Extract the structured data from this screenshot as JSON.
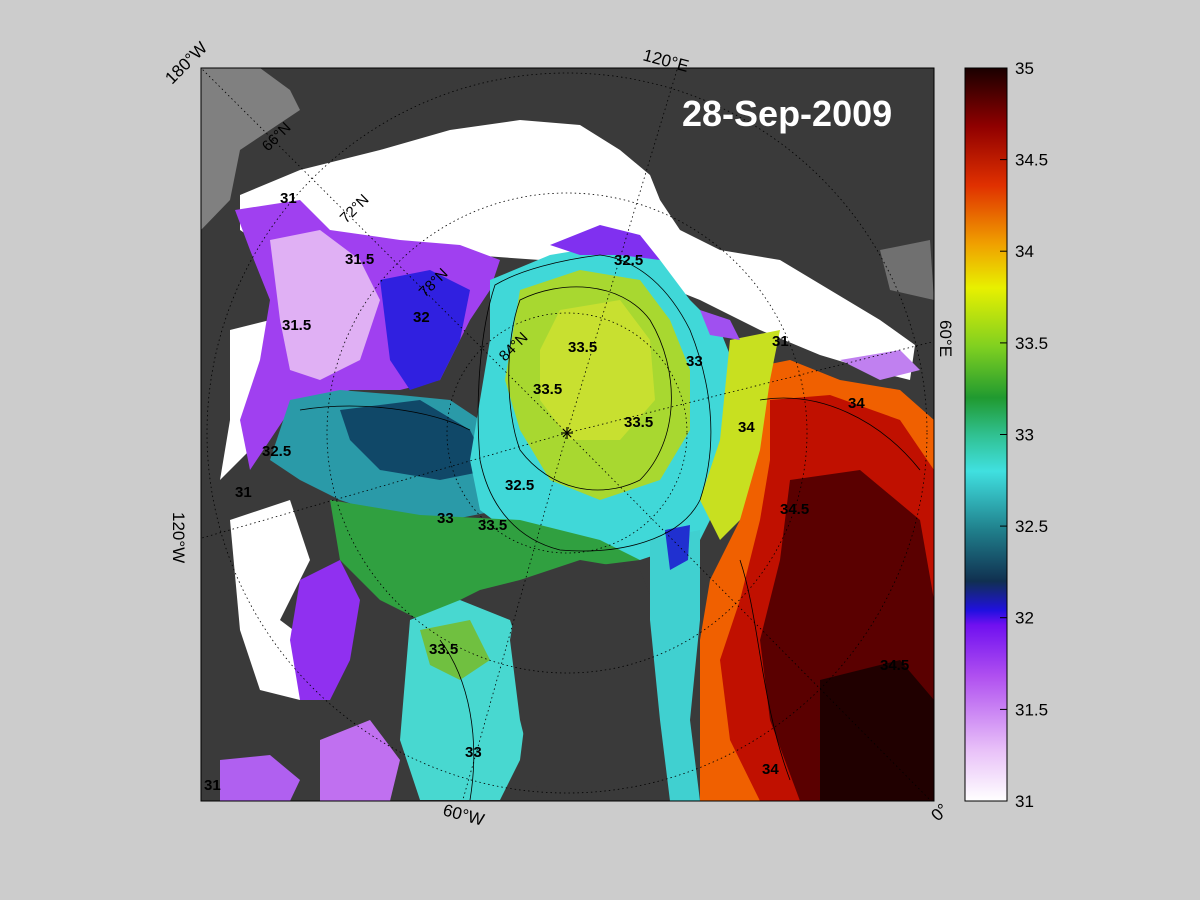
{
  "map": {
    "date": "28-Sep-2009",
    "edge_labels": [
      "180°W",
      "120°E",
      "60°E",
      "0°",
      "60°W",
      "120°W"
    ],
    "graticule_labels": [
      "66°N",
      "72°N",
      "78°N",
      "84°N"
    ],
    "contour_labels": [
      "31",
      "31.5",
      "32",
      "32.5",
      "33",
      "33.5",
      "34",
      "34.5"
    ],
    "colors": {
      "land": "#3a3a3a",
      "ice": "#ffffff",
      "background": "#cccccc"
    }
  },
  "colorbar": {
    "ticks": [
      "35",
      "34.5",
      "34",
      "33.5",
      "33",
      "32.5",
      "32",
      "31.5",
      "31"
    ],
    "min": 31,
    "max": 35,
    "stops": [
      "#ffffff",
      "#d890f0",
      "#9a20f0",
      "#2010e0",
      "#103858",
      "#208890",
      "#40e8e0",
      "#30c070",
      "#30a020",
      "#b0e020",
      "#f0e000",
      "#f08000",
      "#e02000",
      "#900000",
      "#200000"
    ]
  }
}
